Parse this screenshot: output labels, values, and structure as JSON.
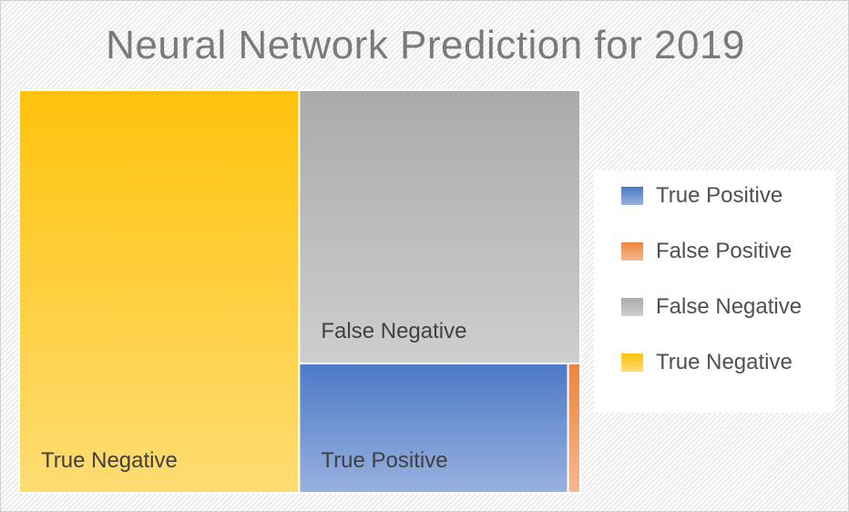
{
  "chart_data": {
    "type": "treemap",
    "title": "Neural Network Prediction for 2019",
    "legend_position": "right",
    "series": [
      {
        "name": "True Positive",
        "value": 15.4,
        "color": "#4472c4"
      },
      {
        "name": "False Positive",
        "value": 0.7,
        "color": "#ed7d31"
      },
      {
        "name": "False Negative",
        "value": 34.0,
        "color": "#a5a5a5"
      },
      {
        "name": "True Negative",
        "value": 49.9,
        "color": "#ffc000"
      }
    ]
  }
}
